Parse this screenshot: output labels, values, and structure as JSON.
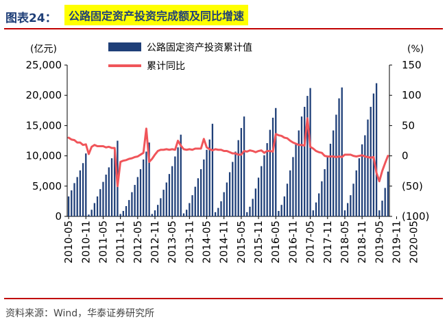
{
  "header": {
    "figure_label": "图表24：",
    "title": "公路固定资产投资完成额及同比增速"
  },
  "source": "资料来源：Wind，华泰证券研究所",
  "colors": {
    "bar": "#1f3f78",
    "line": "#f0555a",
    "rule": "#c00000",
    "title_bg": "#ffff00"
  },
  "chart_data": {
    "type": "bar",
    "left_unit": "(亿元)",
    "right_unit": "(%)",
    "legend": [
      {
        "name": "公路固定资产投资累计值",
        "kind": "bar"
      },
      {
        "name": "累计同比",
        "kind": "line"
      }
    ],
    "legend_position": "top-center",
    "y_left": {
      "range": [
        0,
        25000
      ],
      "ticks": [
        "0",
        "5,000",
        "10,000",
        "15,000",
        "20,000",
        "25,000"
      ]
    },
    "y_right": {
      "range": [
        -100,
        150
      ],
      "ticks": [
        "(100)",
        "(50)",
        "0",
        "50",
        "100",
        "150"
      ]
    },
    "x_tick_labels": [
      "2010-05",
      "2010-11",
      "2011-05",
      "2011-11",
      "2012-05",
      "2012-11",
      "2013-05",
      "2013-11",
      "2014-05",
      "2014-11",
      "2015-05",
      "2015-11",
      "2016-05",
      "2016-11",
      "2017-05",
      "2017-11",
      "2018-05",
      "2018-11",
      "2019-05",
      "2019-11",
      "2020-05"
    ],
    "series": [
      {
        "name": "公路固定资产投资累计值",
        "axis": "left",
        "values": [
          3300,
          4300,
          5500,
          6500,
          7600,
          8800,
          10400,
          300,
          1100,
          2200,
          3300,
          4500,
          5700,
          6900,
          8100,
          9600,
          10900,
          12500,
          400,
          900,
          1700,
          2700,
          4000,
          5200,
          6500,
          7800,
          9400,
          10700,
          12200,
          400,
          1000,
          1900,
          3000,
          4400,
          5600,
          7000,
          8300,
          9900,
          11400,
          13500,
          500,
          1100,
          2200,
          3500,
          4900,
          6300,
          7800,
          9400,
          11000,
          12700,
          15300,
          700,
          1400,
          2500,
          4000,
          5600,
          7300,
          9000,
          10700,
          12600,
          14600,
          16500,
          700,
          1600,
          2900,
          4600,
          6400,
          8300,
          10100,
          12100,
          14300,
          16300,
          17900,
          900,
          1900,
          3300,
          5400,
          7600,
          9800,
          12000,
          14200,
          16500,
          18100,
          19900,
          21200,
          1000,
          2300,
          3800,
          5800,
          7800,
          10000,
          12000,
          14200,
          16800,
          19500,
          21300,
          1000,
          2200,
          3500,
          5400,
          7600,
          9600,
          11900,
          13400,
          16000,
          18100,
          20300,
          22000,
          1000,
          2600,
          4700,
          7400
        ]
      },
      {
        "name": "累计同比",
        "axis": "right",
        "values": [
          30,
          27,
          26,
          22,
          22,
          18,
          19,
          3,
          15,
          18,
          16,
          16,
          16,
          14,
          15,
          13,
          13,
          -50,
          -10,
          -8,
          -7,
          -5,
          -4,
          -2,
          -1,
          2,
          5,
          45,
          -10,
          -5,
          2,
          8,
          10,
          10,
          11,
          10,
          11,
          10,
          25,
          17,
          11,
          10,
          11,
          10,
          12,
          12,
          12,
          28,
          14,
          11,
          9,
          11,
          10,
          10,
          8,
          8,
          6,
          4,
          4,
          2,
          2,
          8,
          7,
          9,
          8,
          6,
          8,
          9,
          5,
          8,
          8,
          7,
          36,
          34,
          33,
          30,
          29,
          25,
          22,
          20,
          18,
          18,
          17,
          62,
          15,
          12,
          8,
          6,
          5,
          0,
          -1,
          -1,
          -1,
          -2,
          -1,
          -2,
          2,
          2,
          2,
          0,
          -1,
          0,
          1,
          -1,
          -2,
          -3,
          -2,
          -28,
          -42,
          -25,
          -12,
          0
        ]
      }
    ]
  }
}
